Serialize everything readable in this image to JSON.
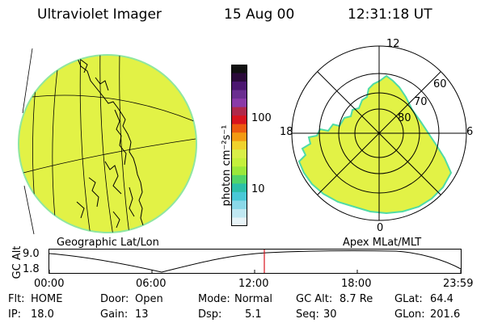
{
  "header": {
    "title": "Ultraviolet Imager",
    "date": "15 Aug 00",
    "time": "12:31:18 UT"
  },
  "colorbar": {
    "unit_label": "photon cm⁻²s⁻¹",
    "ticks": [
      "100",
      "10"
    ],
    "colors": [
      "#101010",
      "#2a0a3a",
      "#4b1670",
      "#6a2e90",
      "#8a3aa8",
      "#b0284a",
      "#d8141e",
      "#ec5a10",
      "#f39a12",
      "#f0d22c",
      "#d8ef48",
      "#c4f03c",
      "#9ae83a",
      "#50d46a",
      "#2cbfa8",
      "#48c8d6",
      "#8ad8e8",
      "#c0e8f2",
      "#e8f4f8"
    ]
  },
  "left_panel": {
    "label": "Geographic Lat/Lon",
    "fill_color": "#e2f246",
    "edge_color": "#8fe6a0"
  },
  "right_panel": {
    "label": "Apex MLat/MLT",
    "mlt_labels": [
      "12",
      "18",
      "6",
      "0"
    ],
    "lat_labels": [
      "60",
      "70",
      "80"
    ],
    "fill_color": "#e2f246",
    "edge_color": "#4fdba6"
  },
  "altitude_plot": {
    "ylabel": "GC Alt",
    "yticks": [
      "9.0",
      "1.8"
    ],
    "xticks": [
      "00:00",
      "06:00",
      "12:00",
      "18:00",
      "23:59"
    ],
    "marker_color": "#d8141e"
  },
  "info": {
    "flt_label": "Flt:",
    "flt_value": "HOME",
    "ip_label": "IP:",
    "ip_value": "18.0",
    "door_label": "Door:",
    "door_value": "Open",
    "gain_label": "Gain:",
    "gain_value": "13",
    "mode_label": "Mode:",
    "mode_value": "Normal",
    "dsp_label": "Dsp:",
    "dsp_value": "5.1",
    "gcalt_label": "GC Alt:",
    "gcalt_value": "8.7 Re",
    "seq_label": "Seq:",
    "seq_value": "30",
    "glat_label": "GLat:",
    "glat_value": "64.4",
    "glon_label": "GLon:",
    "glon_value": "201.6"
  }
}
